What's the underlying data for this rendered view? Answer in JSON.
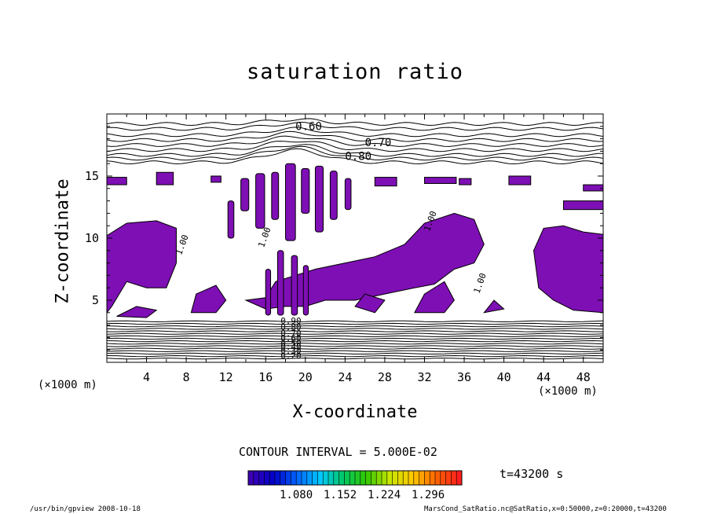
{
  "chart_data": {
    "type": "contour",
    "title": "saturation ratio",
    "xlabel": "X-coordinate",
    "ylabel": "Z-coordinate",
    "x_unit_label": "(×1000 m)",
    "xlim": [
      0,
      50
    ],
    "ylim": [
      0,
      20
    ],
    "x_ticks": [
      4,
      8,
      12,
      16,
      20,
      24,
      28,
      32,
      36,
      40,
      44,
      48
    ],
    "y_ticks": [
      5,
      10,
      15
    ],
    "contour_interval_text": "CONTOUR INTERVAL = 5.000E-02",
    "contour_labels": [
      "0.60",
      "0.70",
      "0.80",
      "1.00",
      "1.00",
      "1.00",
      "1.00",
      "0.90",
      "0.80",
      "0.70",
      "0.60",
      "0.50",
      "0.40",
      "0.30",
      "0.20"
    ],
    "shaded_threshold_colorbar": {
      "tick_labels": [
        "1.080",
        "1.152",
        "1.224",
        "1.296"
      ],
      "colors": [
        "#3c00b4",
        "#0000c8",
        "#0064ff",
        "#00c8ff",
        "#00c864",
        "#32c800",
        "#c8e600",
        "#ffc800",
        "#ff6400",
        "#ff1e1e"
      ]
    },
    "shade_color": "#7d0fb4",
    "time_text": "t=43200 s",
    "footer_left": "/usr/bin/gpview  2008-10-18",
    "footer_right": "MarsCond_SatRatio.nc@SatRatio,x=0:50000,z=0:20000,t=43200"
  }
}
